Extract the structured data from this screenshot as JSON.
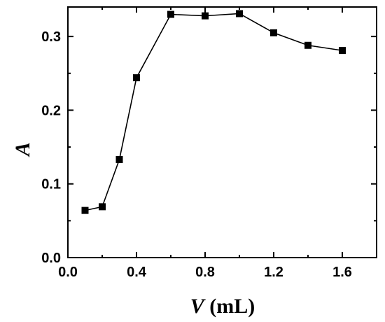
{
  "chart_data": {
    "type": "line",
    "title": "",
    "xlabel_var": "V",
    "xlabel_unit": " (mL)",
    "ylabel": "A",
    "xlim": [
      0.0,
      1.8
    ],
    "ylim": [
      0.0,
      0.34
    ],
    "x_ticks": [
      "0.0",
      "0.4",
      "0.8",
      "1.2",
      "1.6"
    ],
    "x_tick_values": [
      0.0,
      0.4,
      0.8,
      1.2,
      1.6
    ],
    "y_ticks": [
      "0.0",
      "0.1",
      "0.2",
      "0.3"
    ],
    "y_tick_values": [
      0.0,
      0.1,
      0.2,
      0.3
    ],
    "grid": false,
    "legend": "none",
    "series": [
      {
        "marker": "square",
        "color": "#000000",
        "x": [
          0.1,
          0.2,
          0.3,
          0.4,
          0.6,
          0.8,
          1.0,
          1.2,
          1.4,
          1.6
        ],
        "y": [
          0.064,
          0.069,
          0.133,
          0.244,
          0.33,
          0.328,
          0.331,
          0.305,
          0.288,
          0.281
        ]
      }
    ]
  }
}
